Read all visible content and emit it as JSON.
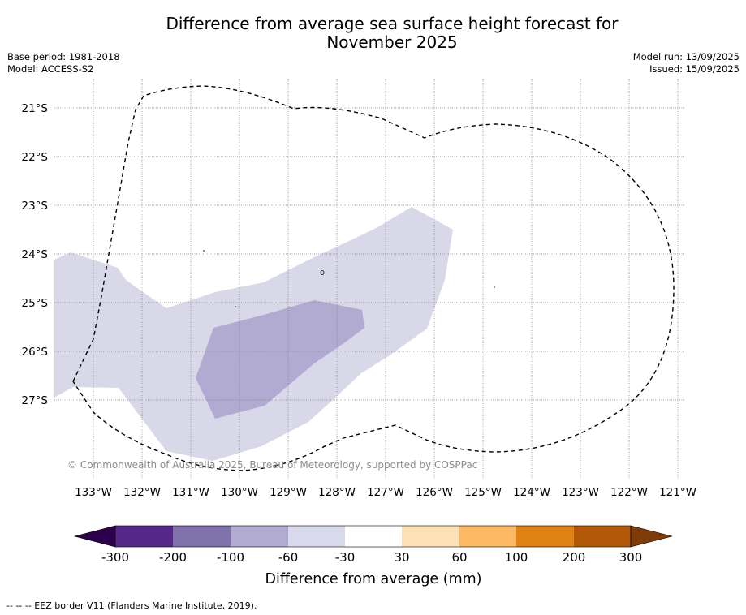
{
  "title_line1": "Difference from average sea surface height forecast for",
  "title_line2": "November 2025",
  "base_period": "Base period: 1981-2018",
  "model": "Model: ACCESS-S2",
  "model_run": "Model run: 13/09/2025",
  "issued": "Issued: 15/09/2025",
  "map": {
    "lat_labels": [
      "21°S",
      "22°S",
      "23°S",
      "24°S",
      "25°S",
      "26°S",
      "27°S"
    ],
    "lon_labels": [
      "133°W",
      "132°W",
      "131°W",
      "130°W",
      "129°W",
      "128°W",
      "127°W",
      "126°W",
      "125°W",
      "124°W",
      "123°W",
      "122°W",
      "121°W"
    ],
    "copyright": "© Commonwealth of Australia 2025, Bureau of Meteorology, supported by COSPPac",
    "fill_colors": {
      "band_-30_-60": "#d9d8e9",
      "band_-60_-100": "#b2abd2"
    }
  },
  "colorbar": {
    "ticks": [
      "-300",
      "-200",
      "-100",
      "-60",
      "-30",
      "30",
      "60",
      "100",
      "200",
      "300"
    ],
    "colors": [
      "#2d004b",
      "#542788",
      "#8073ac",
      "#b2abd2",
      "#d8daeb",
      "#ffffff",
      "#fee0b6",
      "#fdb863",
      "#e08214",
      "#b35806",
      "#7f3b08"
    ],
    "label": "Difference from average (mm)"
  },
  "footnote": "--  --  -- EEZ border V11 (Flanders Marine Institute, 2019)."
}
